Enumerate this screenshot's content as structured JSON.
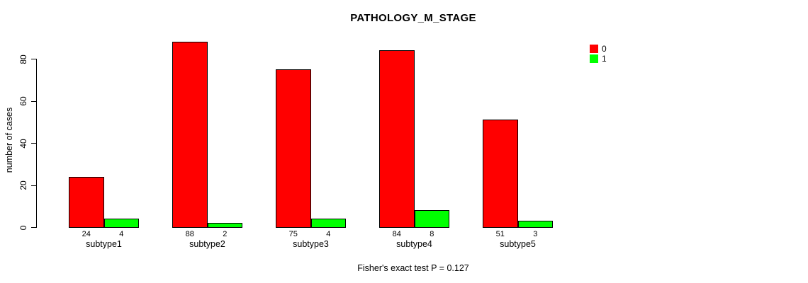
{
  "chart_data": {
    "type": "bar",
    "title": "PATHOLOGY_M_STAGE",
    "ylabel": "number of cases",
    "xlabel": "",
    "categories": [
      "subtype1",
      "subtype2",
      "subtype3",
      "subtype4",
      "subtype5"
    ],
    "series": [
      {
        "name": "0",
        "color": "#FF0000",
        "values": [
          24,
          88,
          75,
          84,
          51
        ]
      },
      {
        "name": "1",
        "color": "#00FF00",
        "values": [
          4,
          2,
          4,
          8,
          3
        ]
      }
    ],
    "bar_value_labels": [
      [
        "24",
        "4"
      ],
      [
        "88",
        "2"
      ],
      [
        "75",
        "4"
      ],
      [
        "84",
        "8"
      ],
      [
        "51",
        "3"
      ]
    ],
    "yticks": [
      0,
      20,
      40,
      60,
      80
    ],
    "ylim": [
      0,
      88
    ],
    "grid": false,
    "legend_position": "top-right",
    "legend": [
      {
        "label": "0",
        "color": "#FF0000"
      },
      {
        "label": "1",
        "color": "#00FF00"
      }
    ],
    "footnote": "Fisher's exact test P = 0.127",
    "bar_border_color": "#000000",
    "axis_color": "#000000"
  }
}
